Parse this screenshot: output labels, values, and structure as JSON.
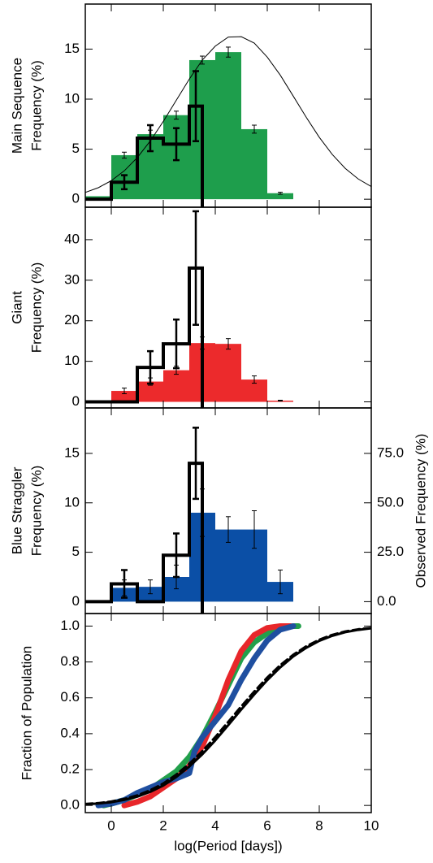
{
  "chart_data": [
    {
      "type": "histogram",
      "ylabel": [
        "Main Sequence",
        "Frequency (%)"
      ],
      "xlim": [
        -1,
        10
      ],
      "xticks": [
        0,
        2,
        4,
        6,
        8,
        10
      ],
      "ylim": [
        -0.8,
        19.5
      ],
      "yticks": [
        0,
        5,
        10,
        15
      ],
      "bins": [
        -1,
        0,
        1,
        2,
        3,
        4,
        5,
        6,
        7
      ],
      "values": [
        0.3,
        4.4,
        6.5,
        8.4,
        13.9,
        14.7,
        7.0,
        0.6
      ],
      "errors": [
        null,
        0.3,
        0.4,
        0.4,
        0.4,
        0.5,
        0.4,
        0.1
      ],
      "color": "#1e9e4c",
      "observed": {
        "bins": [
          -1,
          0,
          1,
          2,
          3,
          3.5
        ],
        "values": [
          0,
          1.7,
          6.1,
          5.5,
          9.3
        ],
        "errors": [
          null,
          0.7,
          1.3,
          1.6,
          3.5
        ]
      },
      "model": {
        "x": [
          -1,
          -0.5,
          0,
          0.5,
          1,
          1.5,
          2,
          2.5,
          3,
          3.5,
          4,
          4.5,
          5,
          5.5,
          6,
          6.5,
          7,
          7.5,
          8,
          8.5,
          9,
          9.5,
          10
        ],
        "values": [
          0.68,
          1.15,
          1.85,
          2.84,
          4.16,
          5.82,
          7.77,
          9.89,
          12.0,
          13.9,
          15.3,
          16.2,
          16.24,
          15.6,
          14.2,
          12.4,
          10.3,
          8.18,
          6.19,
          4.47,
          3.08,
          2.02,
          1.26
        ]
      }
    },
    {
      "type": "histogram",
      "ylabel": [
        "Giant",
        "Frequency (%)"
      ],
      "xlim": [
        -1,
        10
      ],
      "xticks": [
        0,
        2,
        4,
        6,
        8,
        10
      ],
      "ylim": [
        -1.5,
        48
      ],
      "yticks": [
        0,
        10,
        20,
        30,
        40
      ],
      "bins": [
        -1,
        0,
        1,
        2,
        3,
        4,
        5,
        6,
        7
      ],
      "values": [
        0,
        2.7,
        5.0,
        7.8,
        14.5,
        14.3,
        5.5,
        0.3
      ],
      "errors": [
        null,
        0.7,
        0.9,
        1.0,
        1.5,
        1.3,
        0.9,
        0.1
      ],
      "color": "#ec2a2c",
      "observed": {
        "bins": [
          -1,
          0,
          1,
          2,
          3,
          3.5
        ],
        "values": [
          0,
          0,
          8.5,
          14.3,
          33
        ],
        "errors": [
          null,
          null,
          4.0,
          6.0,
          14.0
        ]
      }
    },
    {
      "type": "histogram",
      "ylabel": [
        "Blue Straggler",
        "Frequency (%)"
      ],
      "xlim": [
        -1,
        10
      ],
      "xticks": [
        0,
        2,
        4,
        6,
        8,
        10
      ],
      "ylim": [
        -1.2,
        19.6
      ],
      "yticks": [
        0,
        5,
        10,
        15
      ],
      "y2label": "Observed Frequency (%)",
      "y2lim": [
        -6,
        98
      ],
      "y2ticks": [
        {
          "value": 0,
          "label": "0.0"
        },
        {
          "value": 25,
          "label": "25.0"
        },
        {
          "value": 50,
          "label": "50.0"
        },
        {
          "value": 75,
          "label": "75.0"
        }
      ],
      "bins": [
        -1,
        0,
        1,
        2,
        3,
        4,
        5,
        6,
        7
      ],
      "values": [
        0,
        1.4,
        1.5,
        2.5,
        9.0,
        7.3,
        7.3,
        2.0
      ],
      "errors": [
        null,
        0.8,
        0.7,
        1.2,
        2.4,
        1.3,
        1.9,
        1.2
      ],
      "color": "#0b4fa6",
      "observed": {
        "bins": [
          -1,
          0,
          1,
          2,
          3,
          3.5
        ],
        "values": [
          0,
          1.8,
          0,
          4.7,
          14.0
        ],
        "errors": [
          null,
          1.4,
          null,
          2.2,
          3.6
        ]
      }
    },
    {
      "type": "line",
      "ylabel": [
        "Fraction of Population"
      ],
      "xlabel": "log(Period [days])",
      "xlim": [
        -1,
        10
      ],
      "xticks": [
        0,
        2,
        4,
        6,
        8,
        10
      ],
      "ylim": [
        -0.04,
        1.07
      ],
      "yticks": [
        {
          "value": 0,
          "label": "0.0"
        },
        0.2,
        0.4,
        0.6,
        0.8,
        {
          "value": 1,
          "label": "1.0"
        }
      ],
      "series": [
        {
          "color": "#22a04b",
          "x": [
            -0.3,
            0,
            0.5,
            1,
            1.5,
            2,
            2.5,
            3,
            3.5,
            4,
            4.5,
            5,
            5.5,
            6,
            6.5,
            7,
            7.2
          ],
          "values": [
            0,
            0.01,
            0.03,
            0.06,
            0.09,
            0.14,
            0.19,
            0.27,
            0.38,
            0.52,
            0.67,
            0.82,
            0.91,
            0.96,
            0.99,
            1.0,
            1.0
          ]
        },
        {
          "color": "#e8262a",
          "x": [
            0.5,
            1,
            1.5,
            2,
            2.5,
            3,
            3.5,
            4,
            4.5,
            5,
            5.5,
            6,
            6.5,
            6.9
          ],
          "values": [
            0,
            0.02,
            0.05,
            0.1,
            0.15,
            0.22,
            0.33,
            0.5,
            0.7,
            0.86,
            0.95,
            0.99,
            1.0,
            1.0
          ]
        },
        {
          "color": "#1f4fa0",
          "x": [
            -0.5,
            0,
            0.5,
            1,
            1.5,
            2,
            2.5,
            3,
            3.2,
            3.5,
            4,
            4.5,
            5,
            5.5,
            6,
            6.5,
            7
          ],
          "values": [
            0,
            0.01,
            0.03,
            0.07,
            0.1,
            0.13,
            0.15,
            0.18,
            0.3,
            0.38,
            0.47,
            0.56,
            0.7,
            0.82,
            0.92,
            0.98,
            1.0
          ]
        },
        {
          "color": "#000000",
          "x": [
            -1,
            -0.5,
            0,
            0.5,
            1,
            1.5,
            2,
            2.5,
            3,
            3.5,
            4,
            4.5,
            5,
            5.5,
            6,
            6.5,
            7,
            7.5,
            8,
            8.5,
            9,
            9.5,
            10
          ],
          "values": [
            0.006,
            0.011,
            0.018,
            0.031,
            0.049,
            0.076,
            0.111,
            0.159,
            0.217,
            0.285,
            0.363,
            0.448,
            0.535,
            0.619,
            0.699,
            0.77,
            0.831,
            0.879,
            0.918,
            0.946,
            0.966,
            0.979,
            0.988
          ]
        },
        {
          "color": "#000000",
          "dash": true,
          "x": [
            -1,
            -0.5,
            0,
            0.5,
            1,
            1.5,
            2,
            2.5,
            3,
            3.5,
            4,
            4.5,
            5,
            5.5,
            6,
            6.5,
            7,
            7.5,
            8,
            8.5,
            9,
            9.5,
            10
          ],
          "values": [
            0.008,
            0.013,
            0.022,
            0.036,
            0.056,
            0.085,
            0.122,
            0.172,
            0.232,
            0.302,
            0.381,
            0.466,
            0.552,
            0.635,
            0.713,
            0.782,
            0.84,
            0.887,
            0.924,
            0.951,
            0.97,
            0.982,
            0.99
          ]
        }
      ]
    }
  ]
}
